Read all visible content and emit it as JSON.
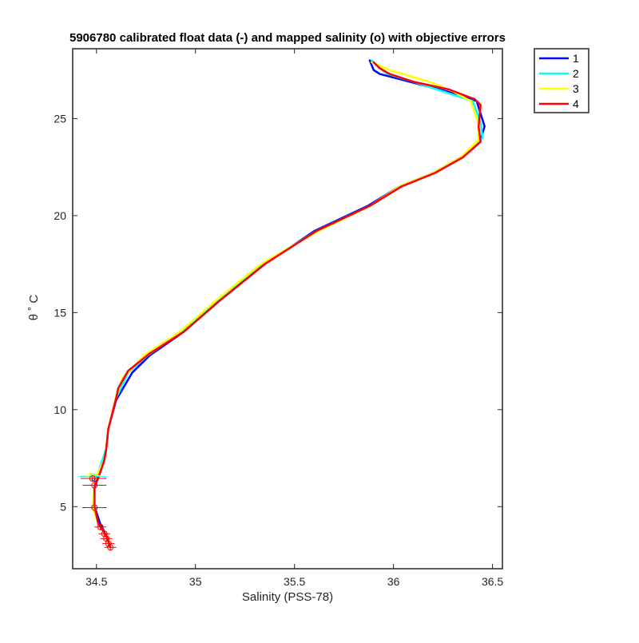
{
  "chart_data": {
    "type": "line",
    "title": "5906780 calibrated float data (-) and mapped salinity (o) with objective errors",
    "xlabel": "Salinity (PSS-78)",
    "ylabel": "θ ˚ C",
    "xlim": [
      34.38,
      36.55
    ],
    "ylim": [
      1.8,
      28.6
    ],
    "xticks": [
      34.5,
      35,
      35.5,
      36,
      36.5
    ],
    "yticks": [
      5,
      10,
      15,
      20,
      25
    ],
    "grid": false,
    "legend_position": "top-right-outside",
    "series": [
      {
        "name": "1",
        "color": "#0000ff",
        "values": [
          [
            34.57,
            2.9
          ],
          [
            34.55,
            3.5
          ],
          [
            34.52,
            4.1
          ],
          [
            34.49,
            5.0
          ],
          [
            34.49,
            6.0
          ],
          [
            34.51,
            6.5
          ],
          [
            34.54,
            7.4
          ],
          [
            34.55,
            8.0
          ],
          [
            34.56,
            9.0
          ],
          [
            34.6,
            10.5
          ],
          [
            34.68,
            11.9
          ],
          [
            34.77,
            12.8
          ],
          [
            34.94,
            14.0
          ],
          [
            35.12,
            15.6
          ],
          [
            35.35,
            17.5
          ],
          [
            35.6,
            19.2
          ],
          [
            35.87,
            20.5
          ],
          [
            36.03,
            21.5
          ],
          [
            36.2,
            22.2
          ],
          [
            36.34,
            23.0
          ],
          [
            36.44,
            23.9
          ],
          [
            36.46,
            24.6
          ],
          [
            36.42,
            25.9
          ],
          [
            36.27,
            26.4
          ],
          [
            36.08,
            26.9
          ],
          [
            35.93,
            27.3
          ],
          [
            35.9,
            27.5
          ],
          [
            35.88,
            28.0
          ]
        ]
      },
      {
        "name": "2",
        "color": "#00ffff",
        "values": [
          [
            34.57,
            2.9
          ],
          [
            34.55,
            3.5
          ],
          [
            34.51,
            4.1
          ],
          [
            34.48,
            5.0
          ],
          [
            34.49,
            6.0
          ],
          [
            34.5,
            6.5
          ],
          [
            34.53,
            7.4
          ],
          [
            34.55,
            8.0
          ],
          [
            34.56,
            9.0
          ],
          [
            34.6,
            10.6
          ],
          [
            34.66,
            11.9
          ],
          [
            34.76,
            12.8
          ],
          [
            34.93,
            14.0
          ],
          [
            35.11,
            15.6
          ],
          [
            35.34,
            17.5
          ],
          [
            35.61,
            19.2
          ],
          [
            35.88,
            20.5
          ],
          [
            36.04,
            21.5
          ],
          [
            36.21,
            22.2
          ],
          [
            36.35,
            23.0
          ],
          [
            36.45,
            24.0
          ],
          [
            36.44,
            24.8
          ],
          [
            36.4,
            25.9
          ],
          [
            36.25,
            26.4
          ],
          [
            36.1,
            26.9
          ],
          [
            35.97,
            27.3
          ],
          [
            35.93,
            27.6
          ],
          [
            35.89,
            28.0
          ]
        ]
      },
      {
        "name": "3",
        "color": "#ffff00",
        "values": [
          [
            34.57,
            2.9
          ],
          [
            34.55,
            3.5
          ],
          [
            34.51,
            4.1
          ],
          [
            34.48,
            5.0
          ],
          [
            34.49,
            6.0
          ],
          [
            34.5,
            6.6
          ],
          [
            34.54,
            7.4
          ],
          [
            34.55,
            8.0
          ],
          [
            34.56,
            9.0
          ],
          [
            34.6,
            10.7
          ],
          [
            34.63,
            11.6
          ],
          [
            34.74,
            12.8
          ],
          [
            34.92,
            14.0
          ],
          [
            35.1,
            15.6
          ],
          [
            35.33,
            17.5
          ],
          [
            35.62,
            19.2
          ],
          [
            35.88,
            20.5
          ],
          [
            36.03,
            21.5
          ],
          [
            36.2,
            22.2
          ],
          [
            36.34,
            23.0
          ],
          [
            36.43,
            23.9
          ],
          [
            36.43,
            24.7
          ],
          [
            36.39,
            25.9
          ],
          [
            36.3,
            26.4
          ],
          [
            36.18,
            26.9
          ],
          [
            36.08,
            27.2
          ],
          [
            35.98,
            27.5
          ],
          [
            35.89,
            27.9
          ]
        ]
      },
      {
        "name": "4",
        "color": "#ff0000",
        "values": [
          [
            34.57,
            2.9
          ],
          [
            34.55,
            3.5
          ],
          [
            34.51,
            4.1
          ],
          [
            34.49,
            5.0
          ],
          [
            34.49,
            6.0
          ],
          [
            34.51,
            6.5
          ],
          [
            34.54,
            7.4
          ],
          [
            34.55,
            8.0
          ],
          [
            34.56,
            9.0
          ],
          [
            34.6,
            10.6
          ],
          [
            34.61,
            11.1
          ],
          [
            34.66,
            12.0
          ],
          [
            34.77,
            12.9
          ],
          [
            34.94,
            14.0
          ],
          [
            35.12,
            15.6
          ],
          [
            35.35,
            17.5
          ],
          [
            35.61,
            19.2
          ],
          [
            35.88,
            20.5
          ],
          [
            36.04,
            21.5
          ],
          [
            36.21,
            22.2
          ],
          [
            36.35,
            23.0
          ],
          [
            36.44,
            23.8
          ],
          [
            36.43,
            24.6
          ],
          [
            36.44,
            25.7
          ],
          [
            36.41,
            26.0
          ],
          [
            36.28,
            26.5
          ],
          [
            36.1,
            26.9
          ],
          [
            35.98,
            27.3
          ],
          [
            35.93,
            27.6
          ],
          [
            35.9,
            27.9
          ]
        ]
      }
    ],
    "mapped_points": [
      {
        "series": "1",
        "x": 34.49,
        "y": 6.45,
        "err": 0.06
      },
      {
        "series": "2",
        "x": 34.48,
        "y": 6.55,
        "err": 0.07
      },
      {
        "series": "3",
        "x": 34.47,
        "y": 6.6,
        "err": 0.05
      },
      {
        "series": "4",
        "x": 34.48,
        "y": 6.45,
        "err": 0.06
      },
      {
        "series": "4",
        "x": 34.49,
        "y": 6.1,
        "err": 0.06
      },
      {
        "series": "1",
        "x": 34.49,
        "y": 4.95,
        "err": 0.06
      },
      {
        "series": "3",
        "x": 34.49,
        "y": 4.95,
        "err": 0.04
      },
      {
        "series": "4",
        "x": 34.49,
        "y": 4.95,
        "err": 0.05
      },
      {
        "series": "4",
        "x": 34.52,
        "y": 3.95,
        "err": 0.03
      },
      {
        "series": "4",
        "x": 34.54,
        "y": 3.6,
        "err": 0.03
      },
      {
        "series": "4",
        "x": 34.55,
        "y": 3.35,
        "err": 0.03
      },
      {
        "series": "4",
        "x": 34.56,
        "y": 3.1,
        "err": 0.03
      },
      {
        "series": "4",
        "x": 34.57,
        "y": 2.9,
        "err": 0.03
      }
    ]
  }
}
